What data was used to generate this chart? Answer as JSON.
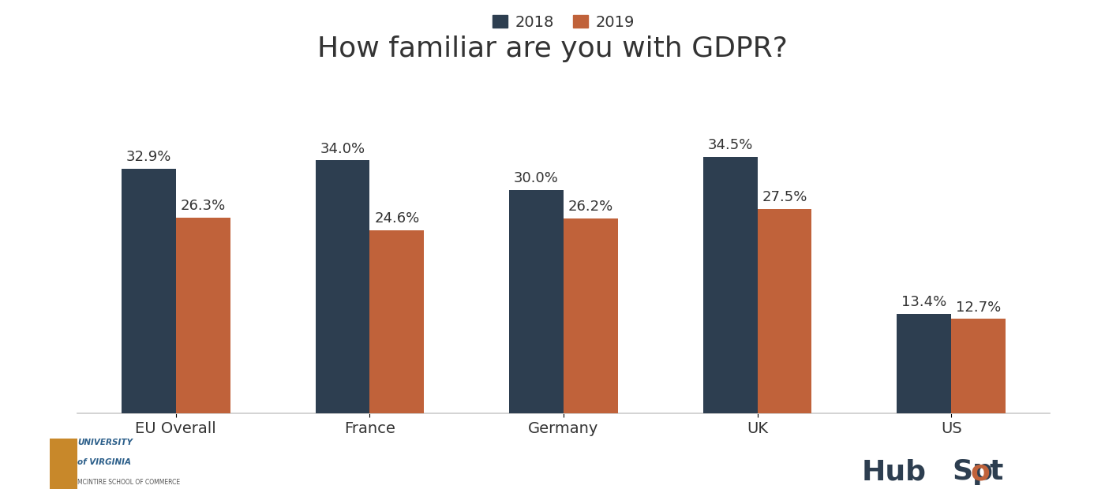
{
  "title": "How familiar are you with GDPR?",
  "categories": [
    "EU Overall",
    "France",
    "Germany",
    "UK",
    "US"
  ],
  "values_2018": [
    32.9,
    34.0,
    30.0,
    34.5,
    13.4
  ],
  "values_2019": [
    26.3,
    24.6,
    26.2,
    27.5,
    12.7
  ],
  "labels_2018": [
    "32.9%",
    "34.0%",
    "30.0%",
    "34.5%",
    "13.4%"
  ],
  "labels_2019": [
    "26.3%",
    "24.6%",
    "26.2%",
    "27.5%",
    "12.7%"
  ],
  "color_2018": "#2d3e50",
  "color_2019": "#c0623a",
  "legend_labels": [
    "2018",
    "2019"
  ],
  "background_color": "#ffffff",
  "bar_width": 0.28,
  "ylim": [
    0,
    42
  ],
  "title_fontsize": 26,
  "label_fontsize": 13,
  "tick_fontsize": 14,
  "legend_fontsize": 14
}
